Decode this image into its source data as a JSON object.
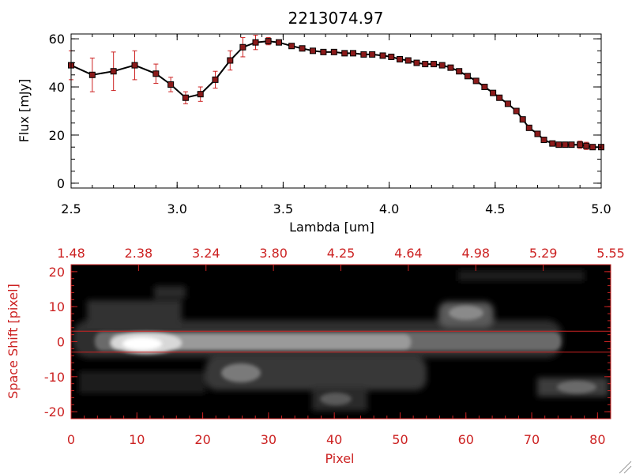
{
  "colors": {
    "axis": "#000000",
    "accent": "#cc2222",
    "image_bg": "#000000",
    "marker": "#8b1a1a"
  },
  "chart_data": [
    {
      "type": "line",
      "title": "2213074.97",
      "xlabel": "Lambda [um]",
      "ylabel": "Flux [mJy]",
      "xlim": [
        2.5,
        5.0
      ],
      "ylim": [
        -2,
        62
      ],
      "xticks": [
        "2.5",
        "3.0",
        "3.5",
        "4.0",
        "4.5",
        "5.0"
      ],
      "yticks": [
        "0",
        "20",
        "40",
        "60"
      ],
      "series": [
        {
          "name": "flux",
          "x": [
            2.5,
            2.6,
            2.7,
            2.8,
            2.9,
            2.97,
            3.04,
            3.11,
            3.18,
            3.25,
            3.31,
            3.37,
            3.43,
            3.48,
            3.54,
            3.59,
            3.64,
            3.69,
            3.74,
            3.79,
            3.83,
            3.88,
            3.92,
            3.97,
            4.01,
            4.05,
            4.09,
            4.13,
            4.17,
            4.21,
            4.25,
            4.29,
            4.33,
            4.37,
            4.41,
            4.45,
            4.49,
            4.52,
            4.56,
            4.6,
            4.63,
            4.66,
            4.7,
            4.73,
            4.77,
            4.8,
            4.83,
            4.86,
            4.9,
            4.93,
            4.96,
            5.0
          ],
          "y": [
            49,
            45,
            46.5,
            49,
            45.5,
            41,
            35.5,
            37,
            43,
            51,
            56.5,
            58.5,
            59,
            58.5,
            57,
            56,
            55,
            54.5,
            54.5,
            54,
            54,
            53.5,
            53.5,
            53,
            52.5,
            51.5,
            51,
            50,
            49.5,
            49.5,
            49,
            48,
            46.5,
            44.5,
            42.5,
            40,
            37.5,
            35.5,
            33,
            30,
            26.5,
            23,
            20.5,
            18,
            16.5,
            16,
            16,
            16,
            16,
            15.5,
            15,
            15
          ],
          "yerr": [
            6,
            7,
            8,
            6,
            4,
            3,
            2.5,
            3,
            3.5,
            4,
            4,
            3,
            1.5,
            1,
            1,
            1,
            1,
            1,
            1,
            1,
            1,
            1,
            1,
            1,
            1,
            1,
            1,
            1,
            1,
            1,
            1,
            1,
            1,
            1,
            1,
            1,
            1,
            1,
            1,
            1,
            1,
            1,
            1,
            1,
            1,
            1,
            1,
            1,
            1.5,
            1.5,
            1,
            1
          ]
        }
      ]
    },
    {
      "type": "heatmap",
      "xlabel": "Pixel",
      "ylabel": "Space Shift [pixel]",
      "xlim": [
        0,
        82
      ],
      "ylim": [
        -22,
        22
      ],
      "xticks": [
        "0",
        "10",
        "20",
        "30",
        "40",
        "50",
        "60",
        "70",
        "80"
      ],
      "yticks": [
        "-20",
        "-10",
        "0",
        "10",
        "20"
      ],
      "top_axis_labels": [
        "1.48",
        "2.38",
        "3.24",
        "3.80",
        "4.25",
        "4.64",
        "4.98",
        "5.29",
        "5.55"
      ],
      "extraction_lines": [
        3,
        -3
      ]
    }
  ]
}
